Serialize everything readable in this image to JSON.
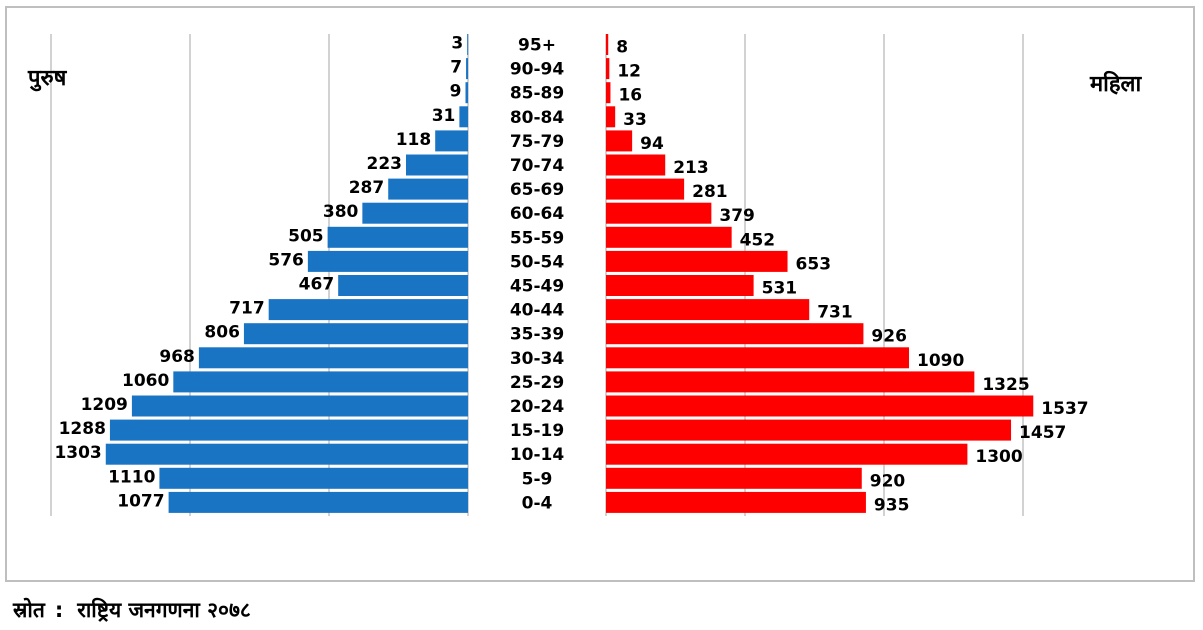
{
  "labels": {
    "male": "पुरुष",
    "female": "महिला",
    "source_label": "स्रोत",
    "source_separator": ":",
    "source_text": "राष्ट्रिय जनगणना २०७८"
  },
  "colors": {
    "male": "#1a74c4",
    "female": "#ff0000",
    "grid": "#a6a6a6",
    "frame": "#bfbfbf"
  },
  "chart_data": {
    "type": "bar",
    "orientation": "horizontal",
    "style": "population-pyramid",
    "categories": [
      "95+",
      "90-94",
      "85-89",
      "80-84",
      "75-79",
      "70-74",
      "65-69",
      "60-64",
      "55-59",
      "50-54",
      "45-49",
      "40-44",
      "35-39",
      "30-34",
      "25-29",
      "20-24",
      "15-19",
      "10-14",
      "5-9",
      "0-4"
    ],
    "series": [
      {
        "name": "पुरुष",
        "side": "left",
        "color": "#1a74c4",
        "values": [
          3,
          7,
          9,
          31,
          118,
          223,
          287,
          380,
          505,
          576,
          467,
          717,
          806,
          968,
          1060,
          1209,
          1288,
          1303,
          1110,
          1077
        ]
      },
      {
        "name": "महिला",
        "side": "right",
        "color": "#ff0000",
        "values": [
          8,
          12,
          16,
          33,
          94,
          213,
          281,
          379,
          452,
          653,
          531,
          731,
          926,
          1090,
          1325,
          1537,
          1457,
          1300,
          920,
          935
        ]
      }
    ],
    "xlim": [
      0,
      1500
    ],
    "grid": true,
    "legend": "none"
  }
}
